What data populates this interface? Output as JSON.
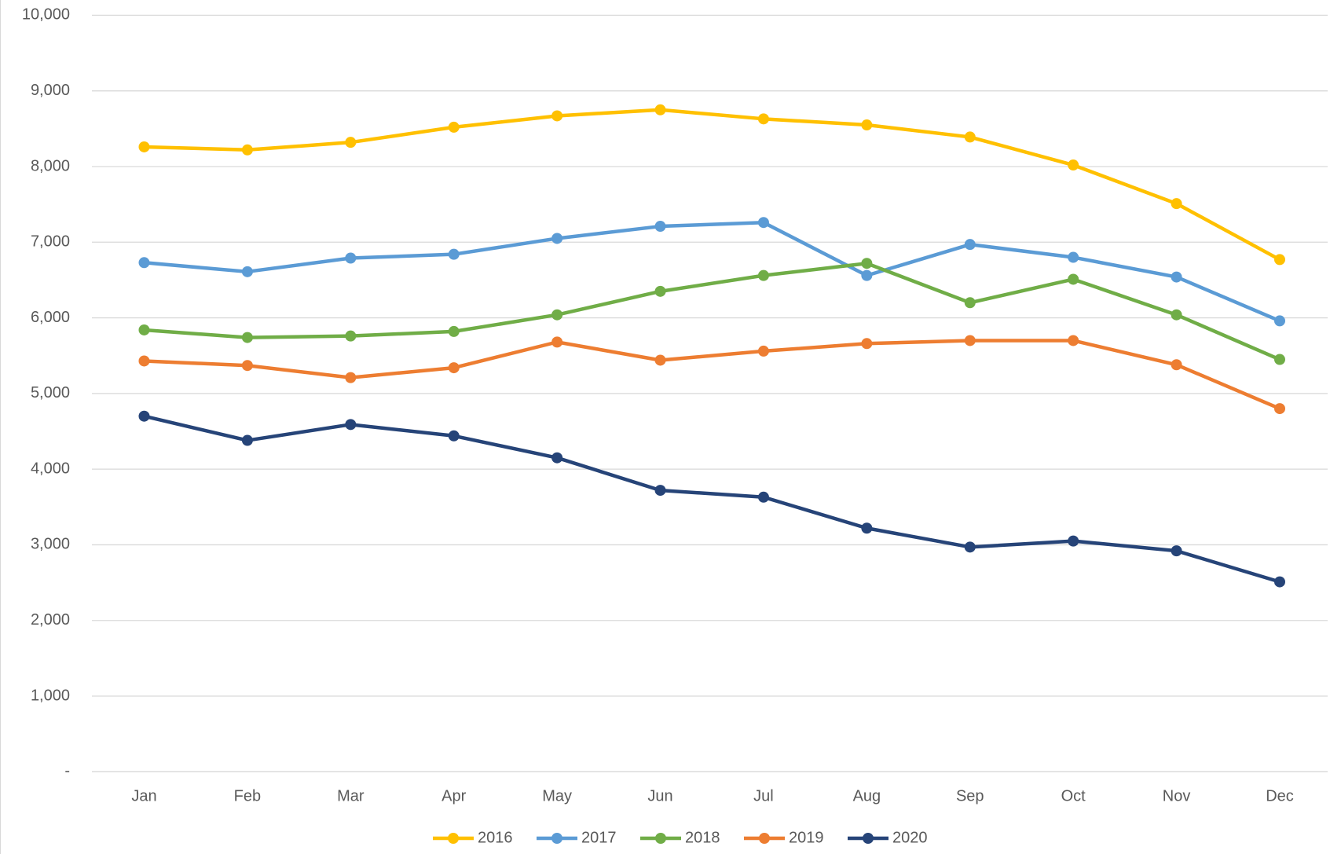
{
  "chart_data": {
    "type": "line",
    "categories": [
      "Jan",
      "Feb",
      "Mar",
      "Apr",
      "May",
      "Jun",
      "Jul",
      "Aug",
      "Sep",
      "Oct",
      "Nov",
      "Dec"
    ],
    "series": [
      {
        "name": "2016",
        "color": "#ffc000",
        "values": [
          8260,
          8220,
          8320,
          8520,
          8670,
          8750,
          8630,
          8550,
          8390,
          8020,
          7510,
          6770
        ]
      },
      {
        "name": "2017",
        "color": "#5b9bd5",
        "values": [
          6730,
          6610,
          6790,
          6840,
          7050,
          7210,
          7260,
          6560,
          6970,
          6800,
          6540,
          5960
        ]
      },
      {
        "name": "2018",
        "color": "#70ad47",
        "values": [
          5840,
          5740,
          5760,
          5820,
          6040,
          6350,
          6560,
          6720,
          6200,
          6510,
          6040,
          5450
        ]
      },
      {
        "name": "2019",
        "color": "#ed7d31",
        "values": [
          5430,
          5370,
          5210,
          5340,
          5680,
          5440,
          5560,
          5660,
          5700,
          5700,
          5380,
          4800
        ]
      },
      {
        "name": "2020",
        "color": "#264478",
        "values": [
          4700,
          4380,
          4590,
          4440,
          4150,
          3720,
          3630,
          3220,
          2970,
          3050,
          2920,
          2510
        ]
      }
    ],
    "ylim": [
      0,
      10000
    ],
    "yticks": [
      {
        "value": 0,
        "label": "-"
      },
      {
        "value": 1000,
        "label": "1,000"
      },
      {
        "value": 2000,
        "label": "2,000"
      },
      {
        "value": 3000,
        "label": "3,000"
      },
      {
        "value": 4000,
        "label": "4,000"
      },
      {
        "value": 5000,
        "label": "5,000"
      },
      {
        "value": 6000,
        "label": "6,000"
      },
      {
        "value": 7000,
        "label": "7,000"
      },
      {
        "value": 8000,
        "label": "8,000"
      },
      {
        "value": 9000,
        "label": "9,000"
      },
      {
        "value": 10000,
        "label": "10,000"
      }
    ],
    "grid": true,
    "legend": "bottom"
  }
}
